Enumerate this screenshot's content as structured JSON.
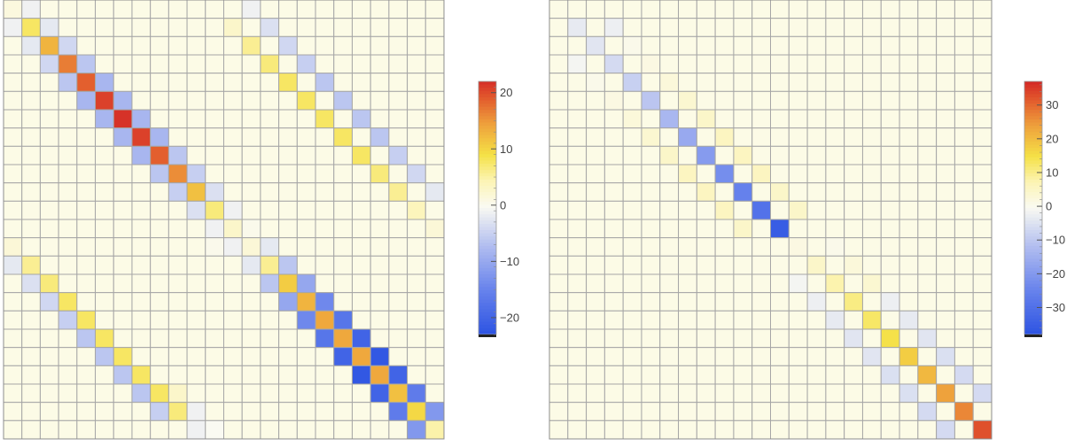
{
  "chart_data": [
    {
      "type": "heatmap",
      "title": "",
      "xlabel": "",
      "ylabel": "",
      "grid": true,
      "size": 24,
      "legend": {
        "position": "right",
        "min": -23,
        "max": 22,
        "ticks": [
          20,
          10,
          0,
          -10,
          -20
        ],
        "tick_labels": [
          "20",
          "10",
          "0",
          "−10",
          "−20"
        ]
      },
      "background_value": 0.8,
      "cells": [
        [
          0,
          0,
          1.5
        ],
        [
          0,
          1,
          -1
        ],
        [
          1,
          0,
          -1
        ],
        [
          1,
          1,
          8
        ],
        [
          1,
          2,
          -2
        ],
        [
          2,
          1,
          -2
        ],
        [
          2,
          2,
          13
        ],
        [
          2,
          3,
          -4
        ],
        [
          3,
          2,
          -4
        ],
        [
          3,
          3,
          17
        ],
        [
          3,
          4,
          -6
        ],
        [
          4,
          3,
          -6
        ],
        [
          4,
          4,
          19
        ],
        [
          4,
          5,
          -8
        ],
        [
          5,
          4,
          -8
        ],
        [
          5,
          5,
          21
        ],
        [
          5,
          6,
          -8
        ],
        [
          6,
          5,
          -8
        ],
        [
          6,
          6,
          22
        ],
        [
          6,
          7,
          -8
        ],
        [
          7,
          6,
          -8
        ],
        [
          7,
          7,
          21
        ],
        [
          7,
          8,
          -8
        ],
        [
          8,
          7,
          -8
        ],
        [
          8,
          8,
          19
        ],
        [
          8,
          9,
          -6
        ],
        [
          9,
          8,
          -6
        ],
        [
          9,
          9,
          16
        ],
        [
          9,
          10,
          -5
        ],
        [
          10,
          9,
          -5
        ],
        [
          10,
          10,
          12
        ],
        [
          10,
          11,
          -3
        ],
        [
          11,
          10,
          -3
        ],
        [
          11,
          11,
          7
        ],
        [
          11,
          12,
          -1
        ],
        [
          12,
          11,
          -1
        ],
        [
          12,
          12,
          3
        ],
        [
          0,
          13,
          -1
        ],
        [
          1,
          12,
          3
        ],
        [
          1,
          14,
          -3
        ],
        [
          2,
          13,
          6
        ],
        [
          2,
          15,
          -4
        ],
        [
          3,
          14,
          7
        ],
        [
          3,
          16,
          -5
        ],
        [
          4,
          15,
          8
        ],
        [
          4,
          17,
          -6
        ],
        [
          5,
          16,
          8
        ],
        [
          5,
          18,
          -6
        ],
        [
          6,
          17,
          8
        ],
        [
          6,
          19,
          -6
        ],
        [
          7,
          18,
          8
        ],
        [
          7,
          20,
          -6
        ],
        [
          8,
          19,
          8
        ],
        [
          8,
          21,
          -5
        ],
        [
          9,
          20,
          7
        ],
        [
          9,
          22,
          -4
        ],
        [
          10,
          21,
          6
        ],
        [
          10,
          23,
          -2
        ],
        [
          11,
          22,
          4
        ],
        [
          12,
          23,
          2
        ],
        [
          13,
          0,
          2
        ],
        [
          14,
          1,
          6
        ],
        [
          14,
          -1,
          0
        ],
        [
          15,
          2,
          7
        ],
        [
          16,
          3,
          8
        ],
        [
          17,
          4,
          8
        ],
        [
          18,
          5,
          8
        ],
        [
          19,
          6,
          8
        ],
        [
          20,
          7,
          8
        ],
        [
          21,
          8,
          8
        ],
        [
          22,
          9,
          7
        ],
        [
          23,
          10,
          -1
        ],
        [
          14,
          0,
          -2
        ],
        [
          15,
          1,
          -3
        ],
        [
          16,
          2,
          -4
        ],
        [
          17,
          3,
          -5
        ],
        [
          18,
          4,
          -6
        ],
        [
          19,
          5,
          -6
        ],
        [
          20,
          6,
          -6
        ],
        [
          21,
          7,
          -6
        ],
        [
          22,
          8,
          -5
        ],
        [
          23,
          11,
          0
        ],
        [
          22,
          10,
          -1
        ],
        [
          21,
          9,
          3
        ],
        [
          13,
          12,
          -1
        ],
        [
          13,
          13,
          2
        ],
        [
          13,
          14,
          -2
        ],
        [
          14,
          13,
          -2
        ],
        [
          14,
          14,
          6
        ],
        [
          14,
          15,
          -6
        ],
        [
          15,
          14,
          -6
        ],
        [
          15,
          15,
          11
        ],
        [
          15,
          16,
          -10
        ],
        [
          16,
          15,
          -10
        ],
        [
          16,
          16,
          13
        ],
        [
          16,
          17,
          -14
        ],
        [
          17,
          16,
          -14
        ],
        [
          17,
          17,
          14
        ],
        [
          17,
          18,
          -17
        ],
        [
          18,
          17,
          -17
        ],
        [
          18,
          18,
          14
        ],
        [
          18,
          19,
          -20
        ],
        [
          19,
          18,
          -20
        ],
        [
          19,
          19,
          14
        ],
        [
          19,
          20,
          -22
        ],
        [
          20,
          19,
          -22
        ],
        [
          20,
          20,
          14
        ],
        [
          20,
          21,
          -20
        ],
        [
          21,
          20,
          -20
        ],
        [
          21,
          21,
          12
        ],
        [
          21,
          22,
          -16
        ],
        [
          22,
          21,
          -16
        ],
        [
          22,
          22,
          10
        ],
        [
          22,
          23,
          -12
        ],
        [
          23,
          22,
          -12
        ],
        [
          23,
          23,
          5
        ],
        [
          12,
          13,
          0.5
        ],
        [
          13,
          11,
          0.5
        ]
      ]
    },
    {
      "type": "heatmap",
      "title": "",
      "xlabel": "",
      "ylabel": "",
      "grid": true,
      "size": 24,
      "legend": {
        "position": "right",
        "min": -38,
        "max": 37,
        "ticks": [
          30,
          20,
          10,
          0,
          -10,
          -20,
          -30
        ],
        "tick_labels": [
          "30",
          "20",
          "10",
          "0",
          "−10",
          "−20",
          "−30"
        ]
      },
      "background_value": 0.8,
      "cells": [
        [
          1,
          1,
          -3
        ],
        [
          1,
          3,
          -2
        ],
        [
          2,
          2,
          -4
        ],
        [
          2,
          4,
          1
        ],
        [
          3,
          3,
          -6
        ],
        [
          3,
          5,
          2
        ],
        [
          4,
          4,
          -8
        ],
        [
          4,
          6,
          3
        ],
        [
          5,
          5,
          -10
        ],
        [
          5,
          7,
          4
        ],
        [
          6,
          6,
          -13
        ],
        [
          6,
          8,
          5
        ],
        [
          7,
          7,
          -16
        ],
        [
          7,
          9,
          6
        ],
        [
          8,
          8,
          -19
        ],
        [
          8,
          10,
          6
        ],
        [
          9,
          9,
          -22
        ],
        [
          9,
          11,
          6
        ],
        [
          10,
          10,
          -25
        ],
        [
          10,
          12,
          5
        ],
        [
          11,
          11,
          -29
        ],
        [
          11,
          13,
          5
        ],
        [
          12,
          12,
          -35
        ],
        [
          3,
          1,
          -1
        ],
        [
          4,
          2,
          1
        ],
        [
          5,
          3,
          2
        ],
        [
          6,
          4,
          3
        ],
        [
          7,
          5,
          4
        ],
        [
          8,
          6,
          5
        ],
        [
          9,
          7,
          6
        ],
        [
          10,
          8,
          6
        ],
        [
          11,
          9,
          6
        ],
        [
          12,
          10,
          5
        ],
        [
          13,
          13,
          2
        ],
        [
          13,
          15,
          1
        ],
        [
          14,
          14,
          5
        ],
        [
          14,
          16,
          3
        ],
        [
          15,
          15,
          8
        ],
        [
          15,
          17,
          4
        ],
        [
          16,
          16,
          11
        ],
        [
          16,
          18,
          -2
        ],
        [
          17,
          17,
          13
        ],
        [
          17,
          19,
          -3
        ],
        [
          18,
          18,
          15
        ],
        [
          18,
          20,
          -4
        ],
        [
          19,
          19,
          18
        ],
        [
          19,
          21,
          -5
        ],
        [
          20,
          20,
          21
        ],
        [
          20,
          22,
          -6
        ],
        [
          21,
          21,
          24
        ],
        [
          21,
          23,
          -6
        ],
        [
          22,
          22,
          27
        ],
        [
          22,
          24,
          -6
        ],
        [
          23,
          23,
          33
        ],
        [
          15,
          13,
          -1
        ],
        [
          16,
          14,
          -2
        ],
        [
          17,
          15,
          -3
        ],
        [
          18,
          16,
          -4
        ],
        [
          19,
          17,
          -4
        ],
        [
          20,
          18,
          -5
        ],
        [
          21,
          19,
          -5
        ],
        [
          22,
          20,
          -6
        ],
        [
          23,
          21,
          -6
        ],
        [
          23,
          24,
          0
        ]
      ]
    }
  ]
}
